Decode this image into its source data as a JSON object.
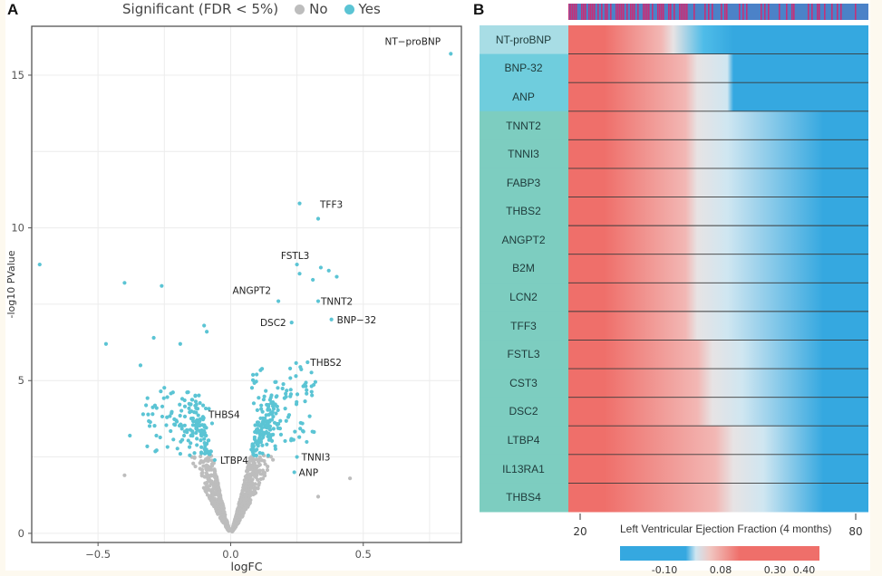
{
  "panel_a": {
    "letter": "A",
    "legend": {
      "title": "Significant (FDR < 5%)",
      "items": [
        {
          "label": "No",
          "color": "#bdbdbd"
        },
        {
          "label": "Yes",
          "color": "#5bc4d4"
        }
      ]
    }
  },
  "panel_b": {
    "letter": "B"
  },
  "chart_data": [
    {
      "type": "scatter",
      "title": "",
      "xlabel": "logFC",
      "ylabel": "-log10 PValue",
      "xlim": [
        -0.75,
        0.87
      ],
      "ylim": [
        -0.3,
        16.6
      ],
      "xticks": [
        -0.5,
        0.0,
        0.5
      ],
      "xtick_labels": [
        "−0.5",
        "0.0",
        "0.5"
      ],
      "yticks": [
        0,
        5,
        10,
        15
      ],
      "ytick_labels": [
        "0",
        "5",
        "10",
        "15"
      ],
      "grid": true,
      "legend_position": "top",
      "colors": {
        "significant": "#5bc4d4",
        "not_significant": "#bdbdbd"
      },
      "labeled_points": [
        {
          "label": "NT−proBNP",
          "x": 0.83,
          "y": 15.7,
          "significant": true
        },
        {
          "label": "TFF3",
          "x": 0.33,
          "y": 10.3,
          "significant": true
        },
        {
          "label": "FSTL3",
          "x": 0.25,
          "y": 8.8,
          "significant": true
        },
        {
          "label": "ANGPT2",
          "x": 0.18,
          "y": 7.6,
          "significant": true
        },
        {
          "label": "TNNT2",
          "x": 0.33,
          "y": 7.6,
          "significant": true
        },
        {
          "label": "DSC2",
          "x": 0.23,
          "y": 6.9,
          "significant": true
        },
        {
          "label": "BNP−32",
          "x": 0.38,
          "y": 7.0,
          "significant": true
        },
        {
          "label": "THBS2",
          "x": 0.29,
          "y": 5.6,
          "significant": true
        },
        {
          "label": "THBS4",
          "x": -0.07,
          "y": 3.6,
          "significant": true
        },
        {
          "label": "TNNI3",
          "x": 0.25,
          "y": 2.5,
          "significant": true
        },
        {
          "label": "LTBP4",
          "x": -0.06,
          "y": 2.4,
          "significant": true
        },
        {
          "label": "ANP",
          "x": 0.24,
          "y": 2.0,
          "significant": true
        }
      ],
      "outlier_points": [
        {
          "x": -0.72,
          "y": 8.8,
          "significant": true
        },
        {
          "x": -0.4,
          "y": 8.2,
          "significant": true
        },
        {
          "x": -0.26,
          "y": 8.1,
          "significant": true
        },
        {
          "x": -0.47,
          "y": 6.2,
          "significant": true
        },
        {
          "x": -0.29,
          "y": 6.4,
          "significant": true
        },
        {
          "x": -0.34,
          "y": 5.5,
          "significant": true
        },
        {
          "x": -0.1,
          "y": 6.8,
          "significant": true
        },
        {
          "x": -0.09,
          "y": 6.6,
          "significant": true
        },
        {
          "x": -0.19,
          "y": 6.2,
          "significant": true
        },
        {
          "x": -0.38,
          "y": 3.2,
          "significant": true
        },
        {
          "x": -0.28,
          "y": 3.2,
          "significant": true
        },
        {
          "x": -0.33,
          "y": 3.9,
          "significant": true
        },
        {
          "x": -0.24,
          "y": 3.8,
          "significant": true
        },
        {
          "x": 0.26,
          "y": 10.8,
          "significant": true
        },
        {
          "x": 0.34,
          "y": 8.7,
          "significant": true
        },
        {
          "x": 0.31,
          "y": 8.3,
          "significant": true
        },
        {
          "x": 0.37,
          "y": 8.6,
          "significant": true
        },
        {
          "x": 0.4,
          "y": 8.4,
          "significant": true
        },
        {
          "x": 0.26,
          "y": 8.5,
          "significant": true
        },
        {
          "x": -0.4,
          "y": 1.9,
          "significant": false
        },
        {
          "x": 0.45,
          "y": 1.8,
          "significant": false
        },
        {
          "x": 0.33,
          "y": 1.2,
          "significant": false
        }
      ],
      "cloud_description": "~1000 proteins forming a V-shaped volcano centered at logFC 0; points with -log10 P above ~2.5 are significant (cyan), below are gray"
    },
    {
      "type": "heatmap",
      "title": "",
      "xlabel": "Left Ventricular Ejection Fraction (4 months)",
      "x_range": [
        20,
        80
      ],
      "xticks": [
        20,
        80
      ],
      "rows": [
        {
          "label": "NT-proBNP",
          "group": 1,
          "group_color": "#a8dde5",
          "low_ef_value": 0.4,
          "high_ef_value": -0.1
        },
        {
          "label": "BNP-32",
          "group": 2,
          "group_color": "#6fcddd",
          "low_ef_value": 0.35,
          "high_ef_value": -0.1
        },
        {
          "label": "ANP",
          "group": 2,
          "group_color": "#6fcddd",
          "low_ef_value": 0.35,
          "high_ef_value": -0.1
        },
        {
          "label": "TNNT2",
          "group": 3,
          "group_color": "#7dcdc0",
          "low_ef_value": 0.35,
          "high_ef_value": -0.1
        },
        {
          "label": "TNNI3",
          "group": 3,
          "group_color": "#7dcdc0",
          "low_ef_value": 0.35,
          "high_ef_value": -0.1
        },
        {
          "label": "FABP3",
          "group": 3,
          "group_color": "#7dcdc0",
          "low_ef_value": 0.35,
          "high_ef_value": -0.1
        },
        {
          "label": "THBS2",
          "group": 3,
          "group_color": "#7dcdc0",
          "low_ef_value": 0.35,
          "high_ef_value": -0.1
        },
        {
          "label": "ANGPT2",
          "group": 3,
          "group_color": "#7dcdc0",
          "low_ef_value": 0.35,
          "high_ef_value": -0.1
        },
        {
          "label": "B2M",
          "group": 3,
          "group_color": "#7dcdc0",
          "low_ef_value": 0.35,
          "high_ef_value": -0.1
        },
        {
          "label": "LCN2",
          "group": 3,
          "group_color": "#7dcdc0",
          "low_ef_value": 0.35,
          "high_ef_value": -0.1
        },
        {
          "label": "TFF3",
          "group": 3,
          "group_color": "#7dcdc0",
          "low_ef_value": 0.35,
          "high_ef_value": -0.08
        },
        {
          "label": "FSTL3",
          "group": 3,
          "group_color": "#7dcdc0",
          "low_ef_value": 0.32,
          "high_ef_value": -0.08
        },
        {
          "label": "CST3",
          "group": 3,
          "group_color": "#7dcdc0",
          "low_ef_value": 0.32,
          "high_ef_value": -0.08
        },
        {
          "label": "DSC2",
          "group": 3,
          "group_color": "#7dcdc0",
          "low_ef_value": 0.32,
          "high_ef_value": -0.08
        },
        {
          "label": "LTBP4",
          "group": 3,
          "group_color": "#7dcdc0",
          "low_ef_value": 0.28,
          "high_ef_value": -0.05
        },
        {
          "label": "IL13RA1",
          "group": 3,
          "group_color": "#7dcdc0",
          "low_ef_value": 0.28,
          "high_ef_value": -0.05
        },
        {
          "label": "THBS4",
          "group": 3,
          "group_color": "#7dcdc0",
          "low_ef_value": 0.28,
          "high_ef_value": -0.05
        }
      ],
      "top_annotation": "per-sample color strip (magenta vs blue), predominantly magenta at low EF and blue at high EF",
      "top_annotation_colors": [
        "#d9236b",
        "#4b82c8"
      ],
      "colorbar": {
        "ticks": [
          -0.1,
          0.08,
          0.3,
          0.4
        ],
        "tick_labels": [
          "-0.10",
          "0.08",
          "0.30",
          "0.40"
        ],
        "colors": {
          "low": "#35a8e0",
          "mid": "#e7e3e4",
          "high": "#ef6f6a"
        }
      }
    }
  ]
}
